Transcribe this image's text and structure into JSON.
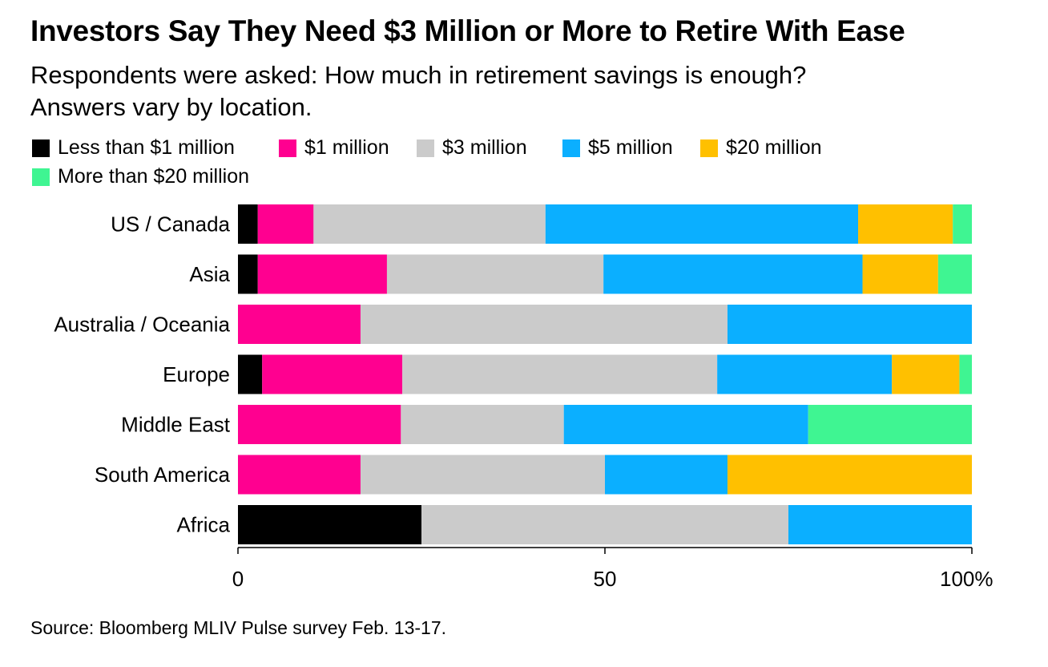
{
  "title": "Investors Say They Need $3 Million or More to Retire With Ease",
  "subtitle_line1": "Respondents were asked: How much in retirement savings is enough?",
  "subtitle_line2": "Answers vary by location.",
  "source": "Source: Bloomberg MLIV Pulse survey Feb. 13-17.",
  "colors": {
    "less_than_1m": "#000000",
    "1m": "#ff0090",
    "3m": "#cbcbcb",
    "5m": "#0bafff",
    "20m": "#ffc000",
    "more_than_20m": "#3ff592"
  },
  "chart_data": {
    "type": "bar",
    "orientation": "horizontal",
    "stacked": true,
    "categories": [
      "US / Canada",
      "Asia",
      "Australia / Oceania",
      "Europe",
      "Middle East",
      "South America",
      "Africa"
    ],
    "series": [
      {
        "name": "Less than $1 million",
        "color": "#000000",
        "values": [
          2.7,
          2.7,
          0,
          3.3,
          0,
          0,
          25
        ]
      },
      {
        "name": "$1 million",
        "color": "#ff0090",
        "values": [
          7.6,
          17.6,
          16.7,
          19.1,
          22.2,
          16.7,
          0
        ]
      },
      {
        "name": "$3 million",
        "color": "#cbcbcb",
        "values": [
          31.6,
          29.5,
          50.0,
          42.9,
          22.2,
          33.3,
          50.0
        ]
      },
      {
        "name": "$5 million",
        "color": "#0bafff",
        "values": [
          42.6,
          35.3,
          33.3,
          23.8,
          33.3,
          16.7,
          25.0
        ]
      },
      {
        "name": "$20 million",
        "color": "#ffc000",
        "values": [
          12.9,
          10.3,
          0,
          9.2,
          0,
          33.3,
          0
        ]
      },
      {
        "name": "More than $20 million",
        "color": "#3ff592",
        "values": [
          2.6,
          4.6,
          0,
          1.7,
          22.3,
          0,
          0
        ]
      }
    ],
    "xlim": [
      0,
      100
    ],
    "x_ticks": [
      {
        "value": 0,
        "label": "0"
      },
      {
        "value": 50,
        "label": "50"
      },
      {
        "value": 100,
        "label": "100%"
      }
    ],
    "legend_position": "top-left",
    "grid": false
  }
}
